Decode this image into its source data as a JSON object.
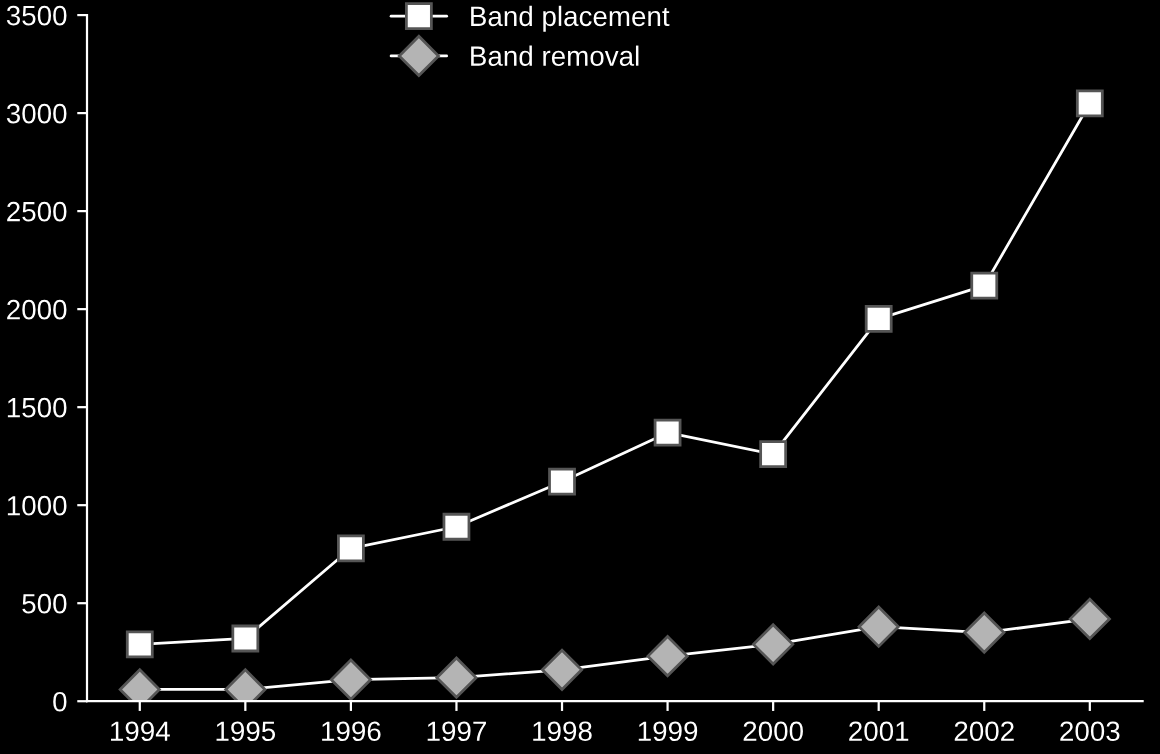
{
  "chart_data": {
    "type": "line",
    "categories": [
      "1994",
      "1995",
      "1996",
      "1997",
      "1998",
      "1999",
      "2000",
      "2001",
      "2002",
      "2003"
    ],
    "series": [
      {
        "name": "Band placement",
        "color": "#ffffff",
        "marker": "square",
        "values": [
          290,
          320,
          780,
          890,
          1120,
          1370,
          1260,
          1950,
          2120,
          3050
        ]
      },
      {
        "name": "Band removal",
        "color": "#b4b4b4",
        "marker": "diamond",
        "values": [
          60,
          60,
          110,
          120,
          160,
          230,
          290,
          380,
          350,
          420
        ]
      }
    ],
    "ylim": [
      0,
      3500
    ],
    "yticks": [
      0,
      500,
      1000,
      1500,
      2000,
      2500,
      3000,
      3500
    ],
    "grid": false,
    "legend": "top",
    "line_style": "solid"
  }
}
